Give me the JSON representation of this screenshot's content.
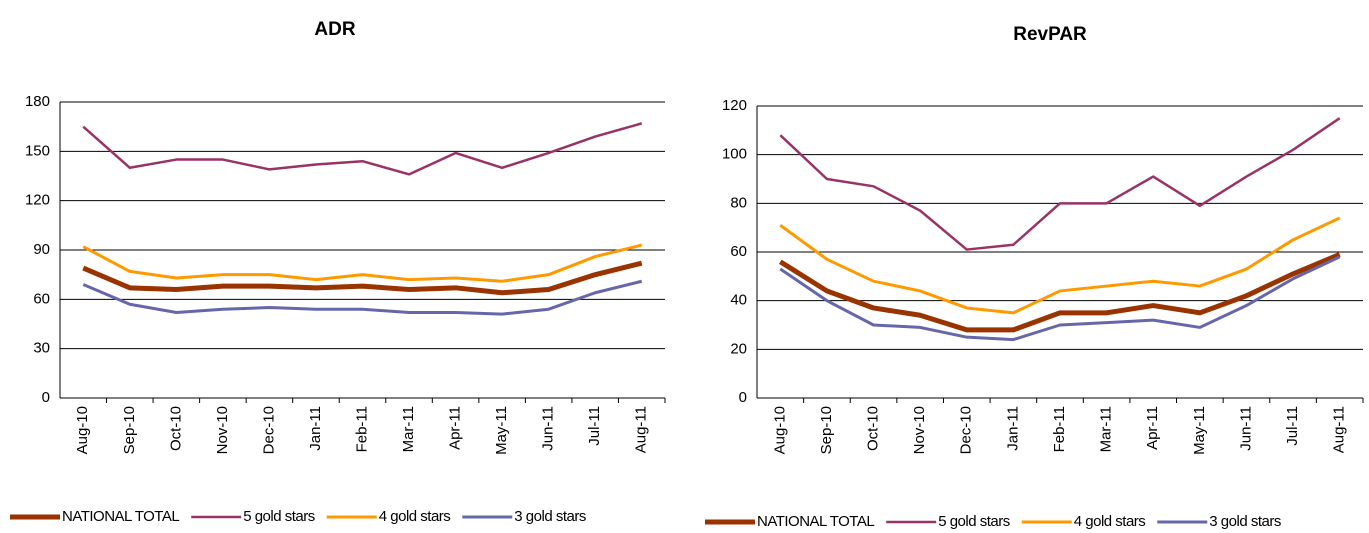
{
  "chart_data": [
    {
      "type": "line",
      "title": "ADR",
      "categories": [
        "Aug-10",
        "Sep-10",
        "Oct-10",
        "Nov-10",
        "Dec-10",
        "Jan-11",
        "Feb-11",
        "Mar-11",
        "Apr-11",
        "May-11",
        "Jun-11",
        "Jul-11",
        "Aug-11"
      ],
      "series": [
        {
          "name": "NATIONAL TOTAL",
          "color": "#993300",
          "width": 5,
          "values": [
            79,
            67,
            66,
            68,
            68,
            67,
            68,
            66,
            67,
            64,
            66,
            75,
            82
          ]
        },
        {
          "name": "5 gold stars",
          "color": "#993366",
          "width": 2.5,
          "values": [
            165,
            140,
            145,
            145,
            139,
            142,
            144,
            136,
            149,
            140,
            149,
            159,
            167
          ]
        },
        {
          "name": "4 gold stars",
          "color": "#ff9900",
          "width": 3,
          "values": [
            92,
            77,
            73,
            75,
            75,
            72,
            75,
            72,
            73,
            71,
            75,
            86,
            93
          ]
        },
        {
          "name": "3 gold stars",
          "color": "#6666aa",
          "width": 3,
          "values": [
            69,
            57,
            52,
            54,
            55,
            54,
            54,
            52,
            52,
            51,
            54,
            64,
            71
          ]
        }
      ],
      "ylim": [
        0,
        180
      ],
      "yticks": [
        0,
        30,
        60,
        90,
        120,
        150,
        180
      ],
      "grid": true,
      "legend": "bottom"
    },
    {
      "type": "line",
      "title": "RevPAR",
      "categories": [
        "Aug-10",
        "Sep-10",
        "Oct-10",
        "Nov-10",
        "Dec-10",
        "Jan-11",
        "Feb-11",
        "Mar-11",
        "Apr-11",
        "May-11",
        "Jun-11",
        "Jul-11",
        "Aug-11"
      ],
      "series": [
        {
          "name": "NATIONAL TOTAL",
          "color": "#993300",
          "width": 5,
          "values": [
            56,
            44,
            37,
            34,
            28,
            28,
            35,
            35,
            38,
            35,
            42,
            51,
            59
          ]
        },
        {
          "name": "5 gold stars",
          "color": "#993366",
          "width": 2.5,
          "values": [
            108,
            90,
            87,
            77,
            61,
            63,
            80,
            80,
            91,
            79,
            91,
            102,
            115
          ]
        },
        {
          "name": "4 gold stars",
          "color": "#ff9900",
          "width": 3,
          "values": [
            71,
            57,
            48,
            44,
            37,
            35,
            44,
            46,
            48,
            46,
            53,
            65,
            74
          ]
        },
        {
          "name": "3 gold stars",
          "color": "#6666aa",
          "width": 3,
          "values": [
            53,
            40,
            30,
            29,
            25,
            24,
            30,
            31,
            32,
            29,
            38,
            49,
            58
          ]
        }
      ],
      "ylim": [
        0,
        120
      ],
      "yticks": [
        0,
        20,
        40,
        60,
        80,
        100,
        120
      ],
      "grid": true,
      "legend": "bottom"
    }
  ]
}
